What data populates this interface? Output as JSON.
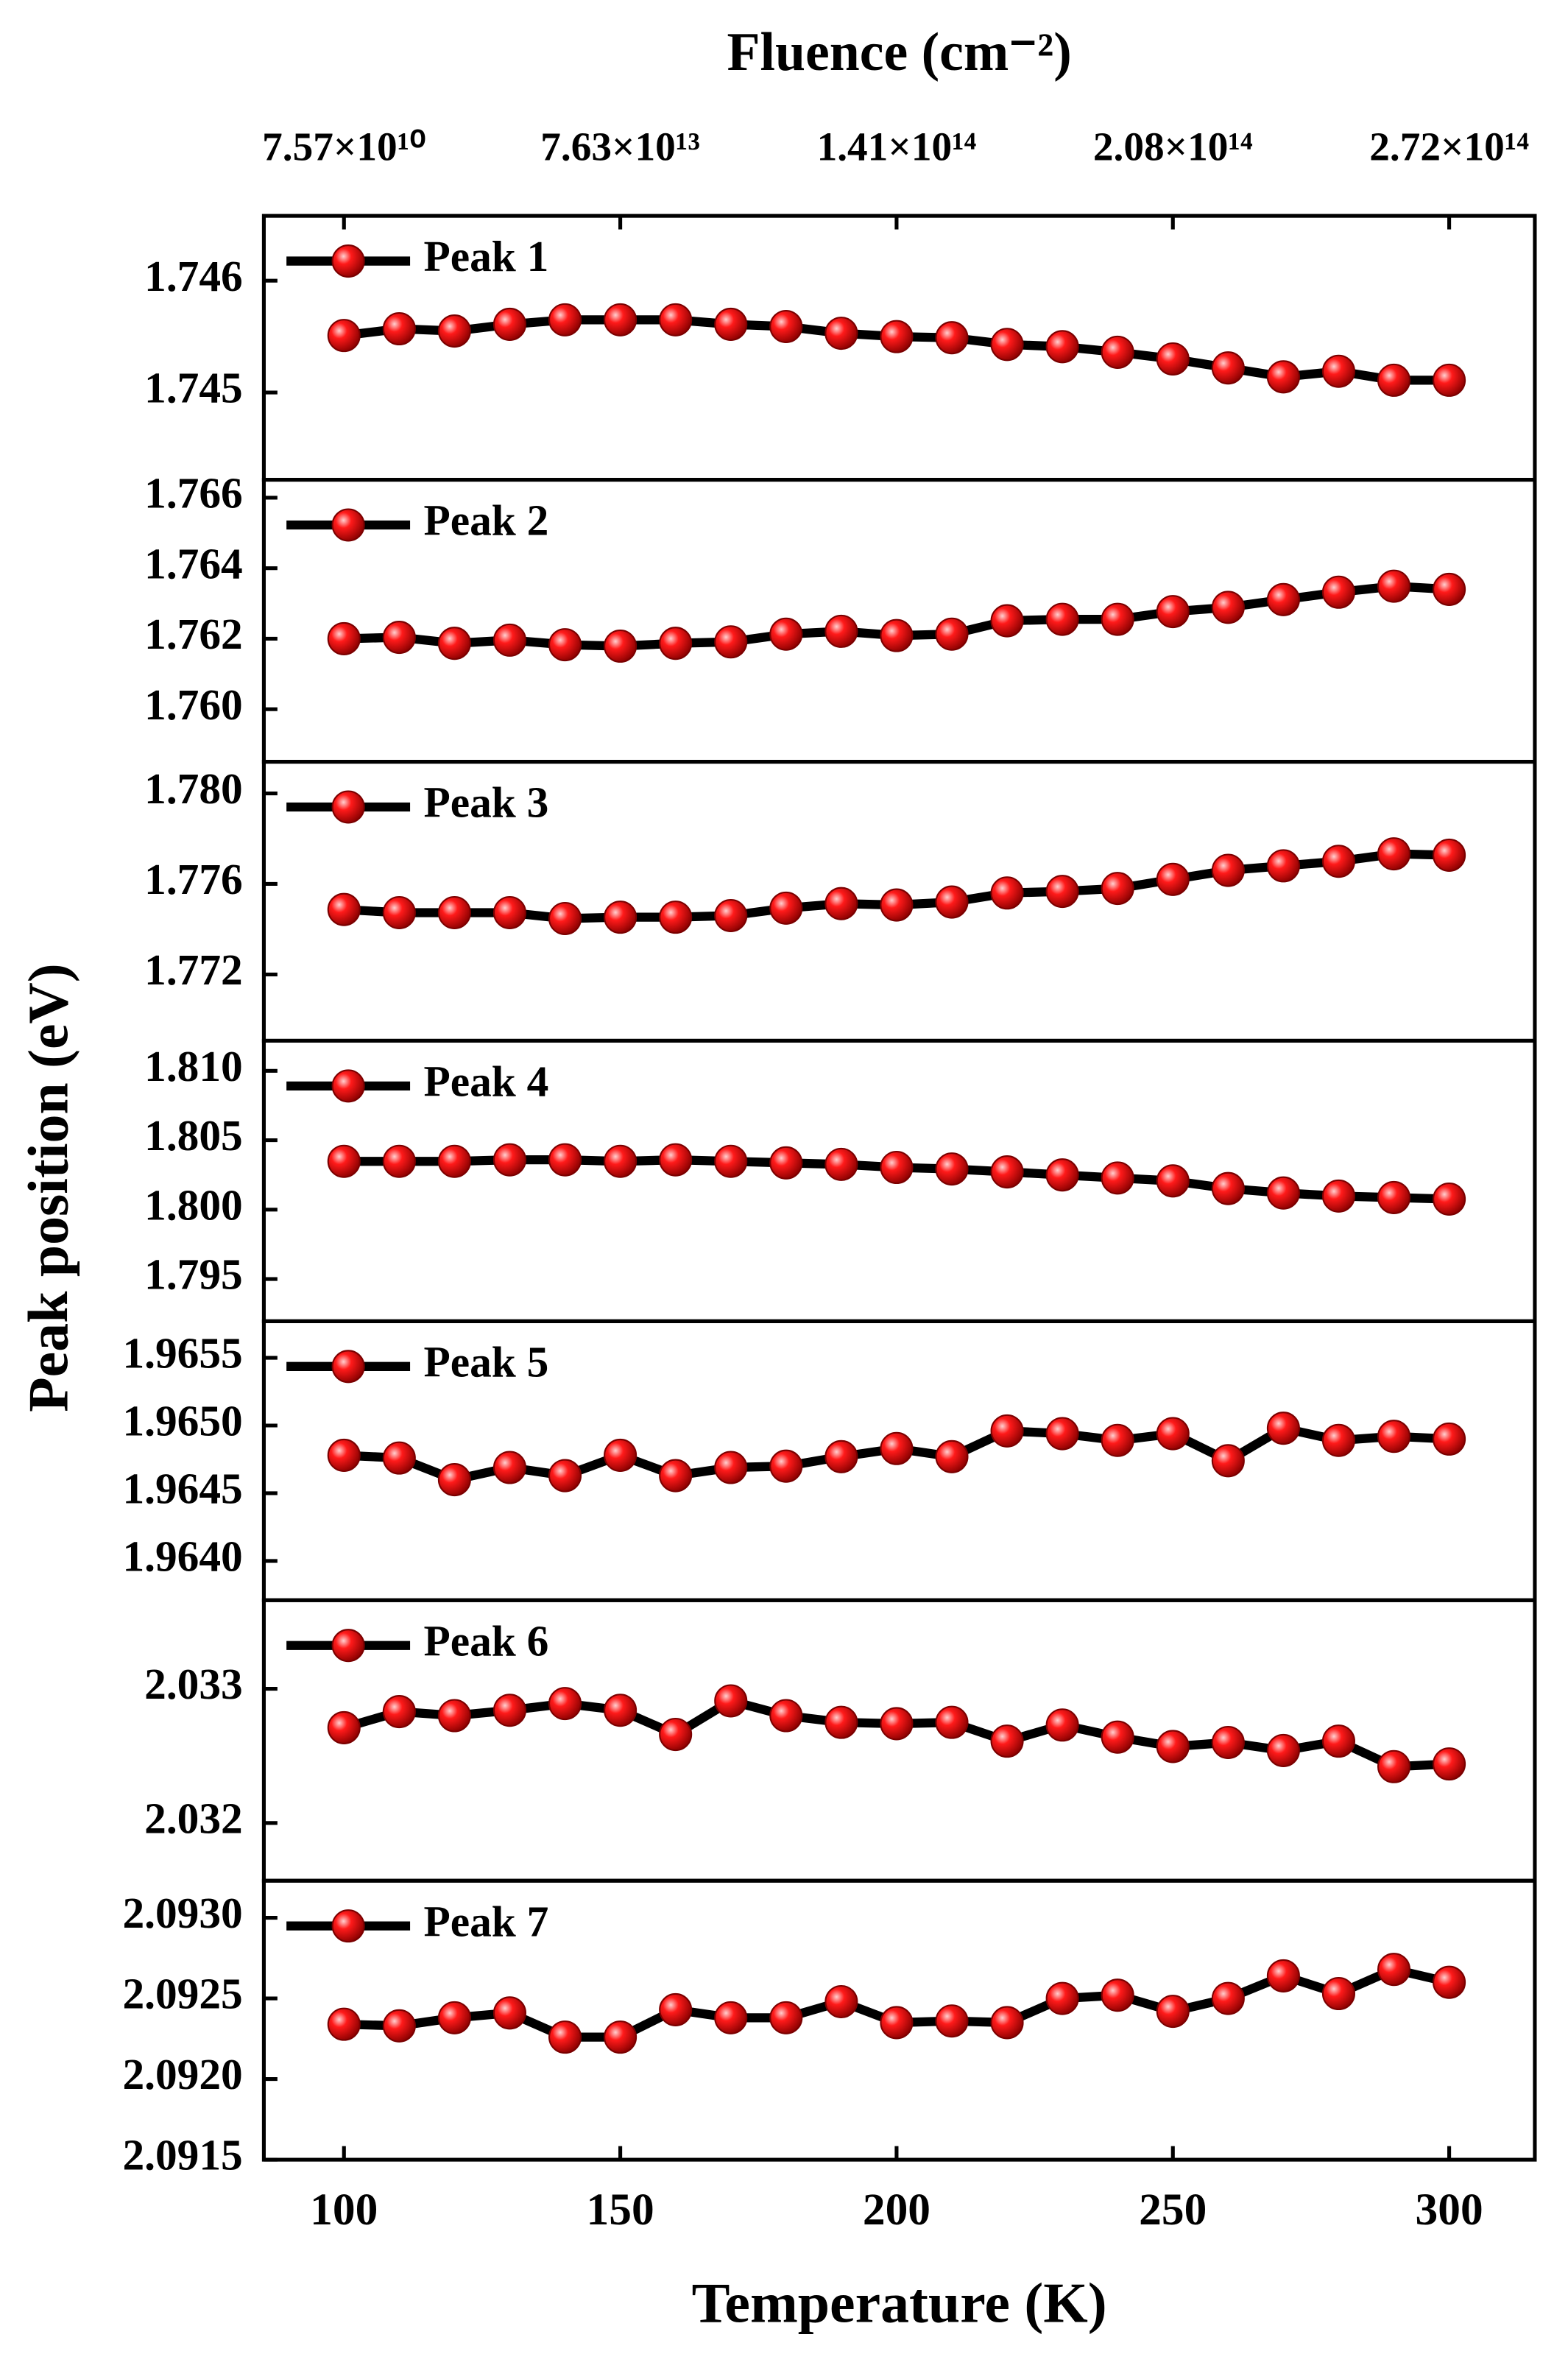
{
  "chart_data": [
    {
      "type": "line",
      "x2label": "Fluence (cm⁻²)",
      "ylabel": "Peak position (eV)",
      "x2ticks": [
        {
          "value": 100,
          "label": "7.57×10¹⁰"
        },
        {
          "value": 150,
          "label": "7.63×10¹³"
        },
        {
          "value": 200,
          "label": "1.41×10¹⁴"
        },
        {
          "value": 250,
          "label": "2.08×10¹⁴"
        },
        {
          "value": 300,
          "label": "2.72×10¹⁴"
        }
      ],
      "xlim": [
        85.5,
        315.5
      ],
      "x": [
        100,
        110,
        120,
        130,
        140,
        150,
        160,
        170,
        180,
        190,
        200,
        210,
        220,
        230,
        240,
        250,
        260,
        270,
        280,
        290,
        300
      ],
      "series": [
        {
          "name": "Peak 1",
          "color": "#ff1a1a",
          "line_color": "#000000",
          "values": [
            1.74551,
            1.74557,
            1.74555,
            1.74561,
            1.74565,
            1.74565,
            1.74565,
            1.74561,
            1.74559,
            1.74553,
            1.7455,
            1.74549,
            1.74543,
            1.74541,
            1.74536,
            1.7453,
            1.74522,
            1.74514,
            1.74519,
            1.74511,
            1.74511
          ]
        }
      ],
      "ylim": [
        1.74422,
        1.74658
      ],
      "yticks": [
        1.745,
        1.746
      ]
    },
    {
      "type": "line",
      "xlim": [
        85.5,
        315.5
      ],
      "x": [
        100,
        110,
        120,
        130,
        140,
        150,
        160,
        170,
        180,
        190,
        200,
        210,
        220,
        230,
        240,
        250,
        260,
        270,
        280,
        290,
        300
      ],
      "series": [
        {
          "name": "Peak 2",
          "color": "#ff1a1a",
          "line_color": "#000000",
          "values": [
            1.762,
            1.76204,
            1.76187,
            1.76196,
            1.76183,
            1.76179,
            1.76187,
            1.76191,
            1.76213,
            1.76221,
            1.76209,
            1.76213,
            1.76251,
            1.76255,
            1.76255,
            1.76277,
            1.76289,
            1.76311,
            1.76332,
            1.76349,
            1.7634
          ]
        }
      ],
      "ylim": [
        1.75851,
        1.76651
      ],
      "yticks": [
        {
          "value": 1.76,
          "label": "1.760"
        },
        {
          "value": 1.762,
          "label": "1.762"
        },
        {
          "value": 1.764,
          "label": "1.764"
        },
        {
          "value": 1.766,
          "label": "1.766"
        }
      ]
    },
    {
      "type": "line",
      "xlim": [
        85.5,
        315.5
      ],
      "x": [
        100,
        110,
        120,
        130,
        140,
        150,
        160,
        170,
        180,
        190,
        200,
        210,
        220,
        230,
        240,
        250,
        260,
        270,
        280,
        290,
        300
      ],
      "series": [
        {
          "name": "Peak 3",
          "color": "#ff1a1a",
          "line_color": "#000000",
          "values": [
            1.77487,
            1.77473,
            1.77473,
            1.77473,
            1.77447,
            1.77453,
            1.77453,
            1.7746,
            1.77493,
            1.77513,
            1.77507,
            1.7752,
            1.7756,
            1.77567,
            1.7758,
            1.7762,
            1.7766,
            1.7768,
            1.777,
            1.77733,
            1.77727
          ]
        }
      ],
      "ylim": [
        1.76907,
        1.7814
      ],
      "yticks": [
        1.772,
        1.776,
        {
          "value": 1.78,
          "label": "1.780"
        }
      ]
    },
    {
      "type": "line",
      "xlim": [
        85.5,
        315.5
      ],
      "x": [
        100,
        110,
        120,
        130,
        140,
        150,
        160,
        170,
        180,
        190,
        200,
        210,
        220,
        230,
        240,
        250,
        260,
        270,
        280,
        290,
        300
      ],
      "series": [
        {
          "name": "Peak 4",
          "color": "#ff1a1a",
          "line_color": "#000000",
          "values": [
            1.80348,
            1.80348,
            1.80348,
            1.80359,
            1.80359,
            1.80348,
            1.80359,
            1.80348,
            1.80337,
            1.80326,
            1.80304,
            1.80293,
            1.80272,
            1.8025,
            1.80228,
            1.80207,
            1.80152,
            1.8012,
            1.80098,
            1.80087,
            1.80076
          ]
        }
      ],
      "ylim": [
        1.79196,
        1.81217
      ],
      "yticks": [
        1.795,
        {
          "value": 1.8,
          "label": "1.800"
        },
        1.805,
        {
          "value": 1.81,
          "label": "1.810"
        }
      ]
    },
    {
      "type": "line",
      "xlim": [
        85.5,
        315.5
      ],
      "x": [
        100,
        110,
        120,
        130,
        140,
        150,
        160,
        170,
        180,
        190,
        200,
        210,
        220,
        230,
        240,
        250,
        260,
        270,
        280,
        290,
        300
      ],
      "series": [
        {
          "name": "Peak 5",
          "color": "#ff1a1a",
          "line_color": "#000000",
          "values": [
            1.96478,
            1.96476,
            1.9646,
            1.96469,
            1.96463,
            1.96478,
            1.96463,
            1.96469,
            1.9647,
            1.96477,
            1.96483,
            1.96477,
            1.96496,
            1.96494,
            1.96489,
            1.96494,
            1.96474,
            1.96498,
            1.96489,
            1.96492,
            1.9649
          ]
        }
      ],
      "ylim": [
        1.96371,
        1.96577
      ],
      "yticks": [
        {
          "value": 1.964,
          "label": "1.9640"
        },
        1.9645,
        {
          "value": 1.965,
          "label": "1.9650"
        },
        1.9655
      ]
    },
    {
      "type": "line",
      "xlim": [
        85.5,
        315.5
      ],
      "x": [
        100,
        110,
        120,
        130,
        140,
        150,
        160,
        170,
        180,
        190,
        200,
        210,
        220,
        230,
        240,
        250,
        260,
        270,
        280,
        290,
        300
      ],
      "series": [
        {
          "name": "Peak 6",
          "color": "#ff1a1a",
          "line_color": "#000000",
          "values": [
            2.03271,
            2.03283,
            2.0328,
            2.03284,
            2.03289,
            2.03284,
            2.03266,
            2.03291,
            2.0328,
            2.03275,
            2.03274,
            2.03275,
            2.03261,
            2.03273,
            2.03264,
            2.03257,
            2.0326,
            2.03254,
            2.03261,
            2.03242,
            2.03244
          ]
        }
      ],
      "ylim": [
        2.03157,
        2.03366
      ],
      "yticks": [
        2.032,
        2.033
      ]
    },
    {
      "type": "line",
      "xlabel": "Temperature (K)",
      "xlim": [
        85.5,
        315.5
      ],
      "xticks": [
        100,
        150,
        200,
        250,
        300
      ],
      "x": [
        100,
        110,
        120,
        130,
        140,
        150,
        160,
        170,
        180,
        190,
        200,
        210,
        220,
        230,
        240,
        250,
        260,
        270,
        280,
        290,
        300
      ],
      "series": [
        {
          "name": "Peak 7",
          "color": "#ff1a1a",
          "line_color": "#000000",
          "values": [
            2.09234,
            2.09233,
            2.09238,
            2.09241,
            2.09226,
            2.09226,
            2.09243,
            2.09238,
            2.09238,
            2.09248,
            2.09235,
            2.09236,
            2.09235,
            2.0925,
            2.09252,
            2.09242,
            2.0925,
            2.09264,
            2.09253,
            2.09268,
            2.0926
          ]
        }
      ],
      "ylim": [
        2.0915,
        2.09323
      ],
      "yticks": [
        2.0915,
        {
          "value": 2.092,
          "label": "2.0920"
        },
        2.0925,
        {
          "value": 2.093,
          "label": "2.0930"
        }
      ]
    }
  ]
}
